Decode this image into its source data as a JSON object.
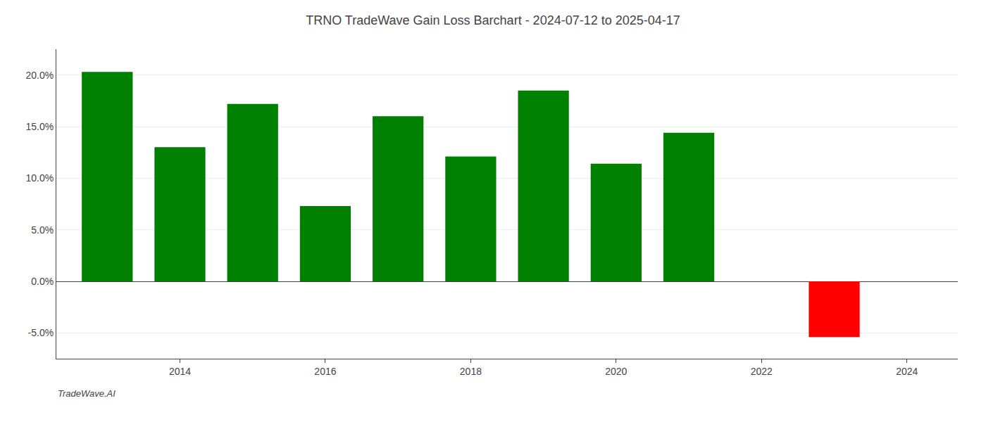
{
  "chart_data": {
    "type": "bar",
    "title": "TRNO TradeWave Gain Loss Barchart - 2024-07-12 to 2025-04-17",
    "x": [
      2013,
      2014,
      2015,
      2016,
      2017,
      2018,
      2019,
      2020,
      2021,
      2023
    ],
    "values": [
      0.203,
      0.13,
      0.172,
      0.073,
      0.16,
      0.121,
      0.185,
      0.114,
      0.144,
      -0.054
    ],
    "colors": [
      "#008000",
      "#008000",
      "#008000",
      "#008000",
      "#008000",
      "#008000",
      "#008000",
      "#008000",
      "#008000",
      "#ff0000"
    ],
    "xlim": [
      2012.3,
      2024.7
    ],
    "xticks": [
      2014,
      2016,
      2018,
      2020,
      2022,
      2024
    ],
    "ylim": [
      -0.075,
      0.225
    ],
    "yticks": [
      {
        "value": -0.05,
        "label": "-5.0%"
      },
      {
        "value": 0.0,
        "label": "0.0%"
      },
      {
        "value": 0.05,
        "label": "5.0%"
      },
      {
        "value": 0.1,
        "label": "10.0%"
      },
      {
        "value": 0.15,
        "label": "15.0%"
      },
      {
        "value": 0.2,
        "label": "20.0%"
      }
    ],
    "grid": "y",
    "annotations": [
      {
        "text": "TradeWave.AI"
      }
    ]
  }
}
